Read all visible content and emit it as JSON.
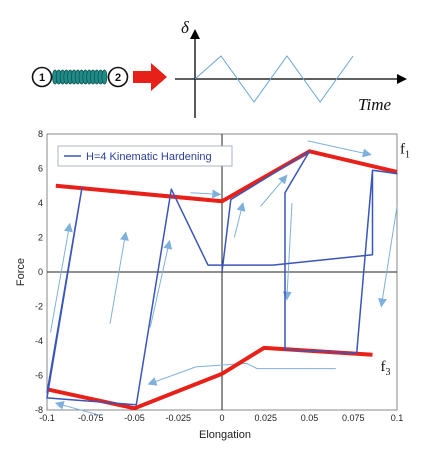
{
  "diagram": {
    "spring": {
      "node_left_label": "1",
      "node_right_label": "2",
      "coil_color": "#1f8a86",
      "arrow_color": "#e8201a"
    },
    "input_signal": {
      "y_axis_symbol": "δ",
      "x_axis_label": "Time",
      "signal_color": "#6aa6d6",
      "signal_vertices": [
        [
          0,
          0
        ],
        [
          0.22,
          1
        ],
        [
          0.5,
          -1
        ],
        [
          0.78,
          1
        ],
        [
          1.06,
          -1
        ],
        [
          1.34,
          1
        ]
      ]
    }
  },
  "chart_data": {
    "type": "line",
    "xlabel": "Elongation",
    "ylabel": "Force",
    "xlim": [
      -0.1,
      0.1
    ],
    "ylim": [
      -8,
      8
    ],
    "x_ticks": [
      "-0.1",
      "-0.075",
      "-0.05",
      "-0.025",
      "0",
      "0.025",
      "0.05",
      "0.075",
      "0.1"
    ],
    "x_tick_values": [
      -0.1,
      -0.075,
      -0.05,
      -0.025,
      0,
      0.025,
      0.05,
      0.075,
      0.1
    ],
    "y_ticks": [
      "8",
      "6",
      "4",
      "2",
      "0",
      "-2",
      "-4",
      "-6",
      "-8"
    ],
    "y_tick_values": [
      8,
      6,
      4,
      2,
      0,
      -2,
      -4,
      -6,
      -8
    ],
    "grid": false,
    "legend_placement": "top-left",
    "legend_entry": "H=4 Kinematic Hardening",
    "series": [
      {
        "name": "H=4 Kinematic Hardening",
        "color": "#3a56b8",
        "points": [
          [
            0,
            0
          ],
          [
            0.005,
            4.2
          ],
          [
            0.05,
            7
          ],
          [
            0.036,
            4.6
          ],
          [
            0.036,
            -4.5
          ],
          [
            0.077,
            -4.7
          ],
          [
            0.086,
            5.9
          ],
          [
            0.1,
            5.7
          ],
          [
            0.086,
            5.9
          ],
          [
            0.086,
            1
          ],
          [
            0.029,
            0.4
          ],
          [
            -0.008,
            0.4
          ],
          [
            -0.029,
            4.8
          ],
          [
            -0.049,
            -7.7
          ],
          [
            -0.1,
            -7.3
          ],
          [
            -0.08,
            4.9
          ],
          [
            -0.1,
            -7.0
          ]
        ]
      }
    ],
    "yield_surfaces": [
      {
        "label": "f",
        "subscript": "1",
        "color": "#e8201a",
        "points": [
          [
            -0.095,
            5.0
          ],
          [
            0,
            4.1
          ],
          [
            0.05,
            7
          ],
          [
            0.1,
            5.8
          ]
        ]
      },
      {
        "label": "f",
        "subscript": "3",
        "color": "#e8201a",
        "points": [
          [
            -0.1,
            -6.8
          ],
          [
            -0.05,
            -7.9
          ],
          [
            0,
            -5.9
          ],
          [
            0.024,
            -4.4
          ],
          [
            0.086,
            -4.8
          ]
        ]
      }
    ],
    "direction_arrows": [
      {
        "points": [
          [
            -0.098,
            -3.5
          ],
          [
            -0.087,
            2.8
          ]
        ]
      },
      {
        "points": [
          [
            -0.064,
            -3.0
          ],
          [
            -0.055,
            2.3
          ]
        ]
      },
      {
        "points": [
          [
            -0.041,
            -3.2
          ],
          [
            -0.03,
            1.8
          ]
        ]
      },
      {
        "points": [
          [
            -0.018,
            4.6
          ],
          [
            -0.001,
            4.5
          ]
        ]
      },
      {
        "points": [
          [
            0.007,
            2.0
          ],
          [
            0.012,
            4.0
          ]
        ]
      },
      {
        "points": [
          [
            0.022,
            3.8
          ],
          [
            0.037,
            5.6
          ]
        ]
      },
      {
        "points": [
          [
            0.049,
            7.6
          ],
          [
            0.085,
            6.8
          ]
        ]
      },
      {
        "points": [
          [
            0.04,
            4.0
          ],
          [
            0.037,
            -1.6
          ]
        ]
      },
      {
        "points": [
          [
            0.1,
            3.8
          ],
          [
            0.091,
            -2.0
          ]
        ]
      },
      {
        "points": [
          [
            0.065,
            -5.6
          ],
          [
            0.02,
            -5.6
          ],
          [
            0.014,
            -5.3
          ],
          [
            -0.015,
            -5.5
          ],
          [
            -0.042,
            -6.5
          ]
        ]
      },
      {
        "points": [
          [
            -0.07,
            -8.3
          ],
          [
            -0.095,
            -7.6
          ]
        ]
      }
    ]
  }
}
